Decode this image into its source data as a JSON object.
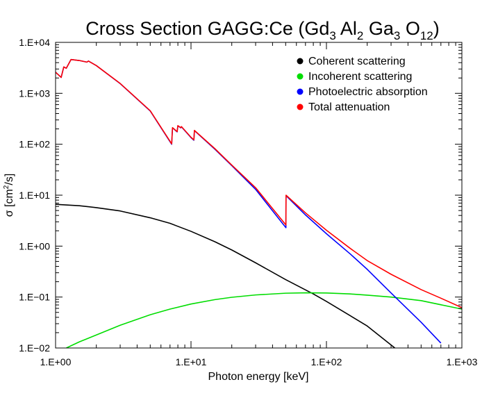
{
  "chart_data": {
    "type": "line",
    "title": {
      "prefix": "Cross Section GAGG:Ce (Gd",
      "parts": [
        {
          "sub": "3",
          "text": " Al"
        },
        {
          "sub": "2",
          "text": " Ga"
        },
        {
          "sub": "3",
          "text": " O"
        },
        {
          "sub": "12",
          "text": ")"
        }
      ]
    },
    "xlabel": "Photon energy [keV]",
    "ylabel": {
      "prefix": "σ [cm",
      "sup": "2",
      "suffix": "/s]"
    },
    "xscale": "log",
    "yscale": "log",
    "xlim": [
      1,
      1000
    ],
    "ylim": [
      0.01,
      10000
    ],
    "xticks": [
      {
        "value": 1,
        "label": "1.E+00"
      },
      {
        "value": 10,
        "label": "1.E+01"
      },
      {
        "value": 100,
        "label": "1.E+02"
      },
      {
        "value": 1000,
        "label": "1.E+03"
      }
    ],
    "yticks": [
      {
        "value": 0.01,
        "label": "1.E−02"
      },
      {
        "value": 0.1,
        "label": "1.E−01"
      },
      {
        "value": 1,
        "label": "1.E+00"
      },
      {
        "value": 10,
        "label": "1.E+01"
      },
      {
        "value": 100,
        "label": "1.E+02"
      },
      {
        "value": 1000,
        "label": "1.E+03"
      },
      {
        "value": 10000,
        "label": "1.E+04"
      }
    ],
    "legend_position": "top-right",
    "series": [
      {
        "name": "Coherent scattering",
        "color": "#000000",
        "x": [
          1,
          1.5,
          2,
          3,
          5,
          7,
          10,
          15,
          20,
          30,
          50,
          80,
          100,
          150,
          200,
          320
        ],
        "y": [
          6.6,
          6.2,
          5.7,
          4.9,
          3.6,
          2.8,
          1.95,
          1.22,
          0.84,
          0.47,
          0.22,
          0.115,
          0.082,
          0.043,
          0.027,
          0.01
        ]
      },
      {
        "name": "Incoherent scattering",
        "color": "#00dd00",
        "x": [
          1.2,
          1.5,
          2,
          3,
          5,
          7,
          10,
          15,
          20,
          30,
          50,
          70,
          100,
          150,
          200,
          300,
          500,
          1000
        ],
        "y": [
          0.01,
          0.0132,
          0.018,
          0.028,
          0.045,
          0.058,
          0.073,
          0.089,
          0.099,
          0.11,
          0.119,
          0.121,
          0.12,
          0.115,
          0.109,
          0.1,
          0.085,
          0.058
        ]
      },
      {
        "name": "Photoelectric absorption",
        "color": "#0000ff",
        "x": [
          1,
          1.1,
          1.15,
          1.2,
          1.3,
          1.35,
          1.5,
          1.7,
          1.75,
          2,
          3,
          5,
          7.2,
          7.3,
          7.9,
          8.0,
          8.4,
          8.5,
          10,
          10.5,
          10.6,
          15,
          20,
          30,
          50.2,
          50.3,
          70,
          100,
          150,
          200,
          300,
          500,
          700
        ],
        "y": [
          2600,
          2050,
          3300,
          3100,
          4600,
          4550,
          4400,
          4100,
          4300,
          3500,
          1550,
          450,
          100,
          210,
          175,
          230,
          210,
          220,
          135,
          120,
          185,
          80,
          38,
          13,
          2.3,
          9.8,
          4.1,
          1.75,
          0.7,
          0.35,
          0.12,
          0.032,
          0.0125
        ]
      },
      {
        "name": "Total attenuation",
        "color": "#ff0000",
        "x": [
          1,
          1.1,
          1.15,
          1.2,
          1.3,
          1.35,
          1.5,
          1.7,
          1.75,
          2,
          3,
          5,
          7.2,
          7.3,
          7.9,
          8.0,
          8.4,
          8.5,
          10,
          10.5,
          10.6,
          15,
          20,
          30,
          50.2,
          50.3,
          70,
          100,
          150,
          200,
          300,
          500,
          700,
          1000
        ],
        "y": [
          2600,
          2050,
          3300,
          3100,
          4600,
          4550,
          4400,
          4100,
          4300,
          3500,
          1560,
          455,
          102,
          212,
          177,
          232,
          212,
          222,
          137,
          122,
          187,
          82,
          39,
          14,
          2.6,
          10,
          4.5,
          2.05,
          0.9,
          0.52,
          0.28,
          0.14,
          0.095,
          0.062
        ]
      }
    ]
  }
}
